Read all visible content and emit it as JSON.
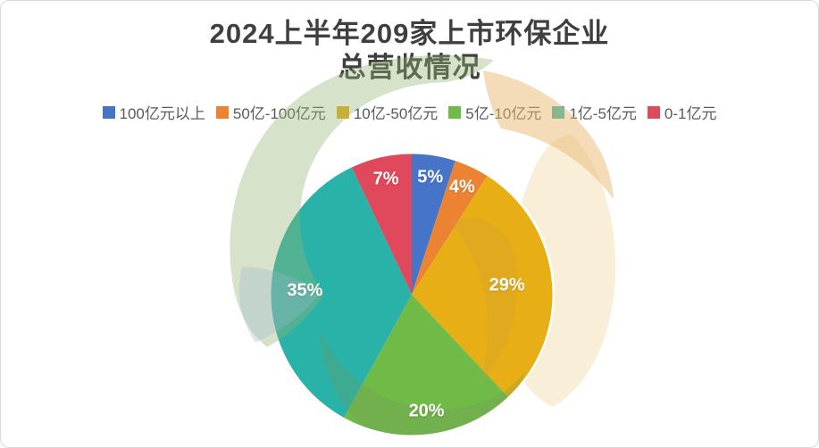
{
  "frame": {
    "background": "#FFFFFF",
    "border_color": "#D9D9D9"
  },
  "title": {
    "line1": "2024上半年209家上市环保企业",
    "line2": "总营收情况",
    "color": "#3F3F3F"
  },
  "legend": {
    "text_color": "#5A5A5A",
    "position": "top",
    "items": [
      {
        "label": "100亿元以上",
        "color": "#4674C8"
      },
      {
        "label": "50亿-100亿元",
        "color": "#EC8333"
      },
      {
        "label": "10亿-50亿元",
        "color": "#E7AF15"
      },
      {
        "label": "5亿-10亿元",
        "color": "#70BA47"
      },
      {
        "label": "1亿-5亿元",
        "color": "#29B2A8"
      },
      {
        "label": "0-1亿元",
        "color": "#E0485C"
      }
    ]
  },
  "chart_data": {
    "type": "pie",
    "title": "2024上半年209家上市环保企业 总营收情况",
    "categories": [
      "100亿元以上",
      "50亿-100亿元",
      "10亿-50亿元",
      "5亿-10亿元",
      "1亿-5亿元",
      "0-1亿元"
    ],
    "values": [
      5,
      4,
      29,
      20,
      35,
      7
    ],
    "unit": "%",
    "colors": [
      "#4674C8",
      "#EC8333",
      "#E7AF15",
      "#70BA47",
      "#29B2A8",
      "#E0485C"
    ],
    "start_angle_deg": 0,
    "direction": "clockwise",
    "label_color": "#FFFFFF",
    "legend_position": "top",
    "data_labels": [
      "5%",
      "4%",
      "29%",
      "20%",
      "35%",
      "7%"
    ]
  },
  "watermark": {
    "name": "leaf-swirl-logo",
    "sage": "rgba(146,178,114,0.38)",
    "tan_strong": "rgba(233,186,116,0.50)",
    "cream": "rgba(242,220,168,0.45)",
    "blue": "rgba(152,182,212,0.32)",
    "inner_sage": "rgba(118,150,88,0.28)",
    "inner_tan": "rgba(206,156,60,0.25)"
  }
}
